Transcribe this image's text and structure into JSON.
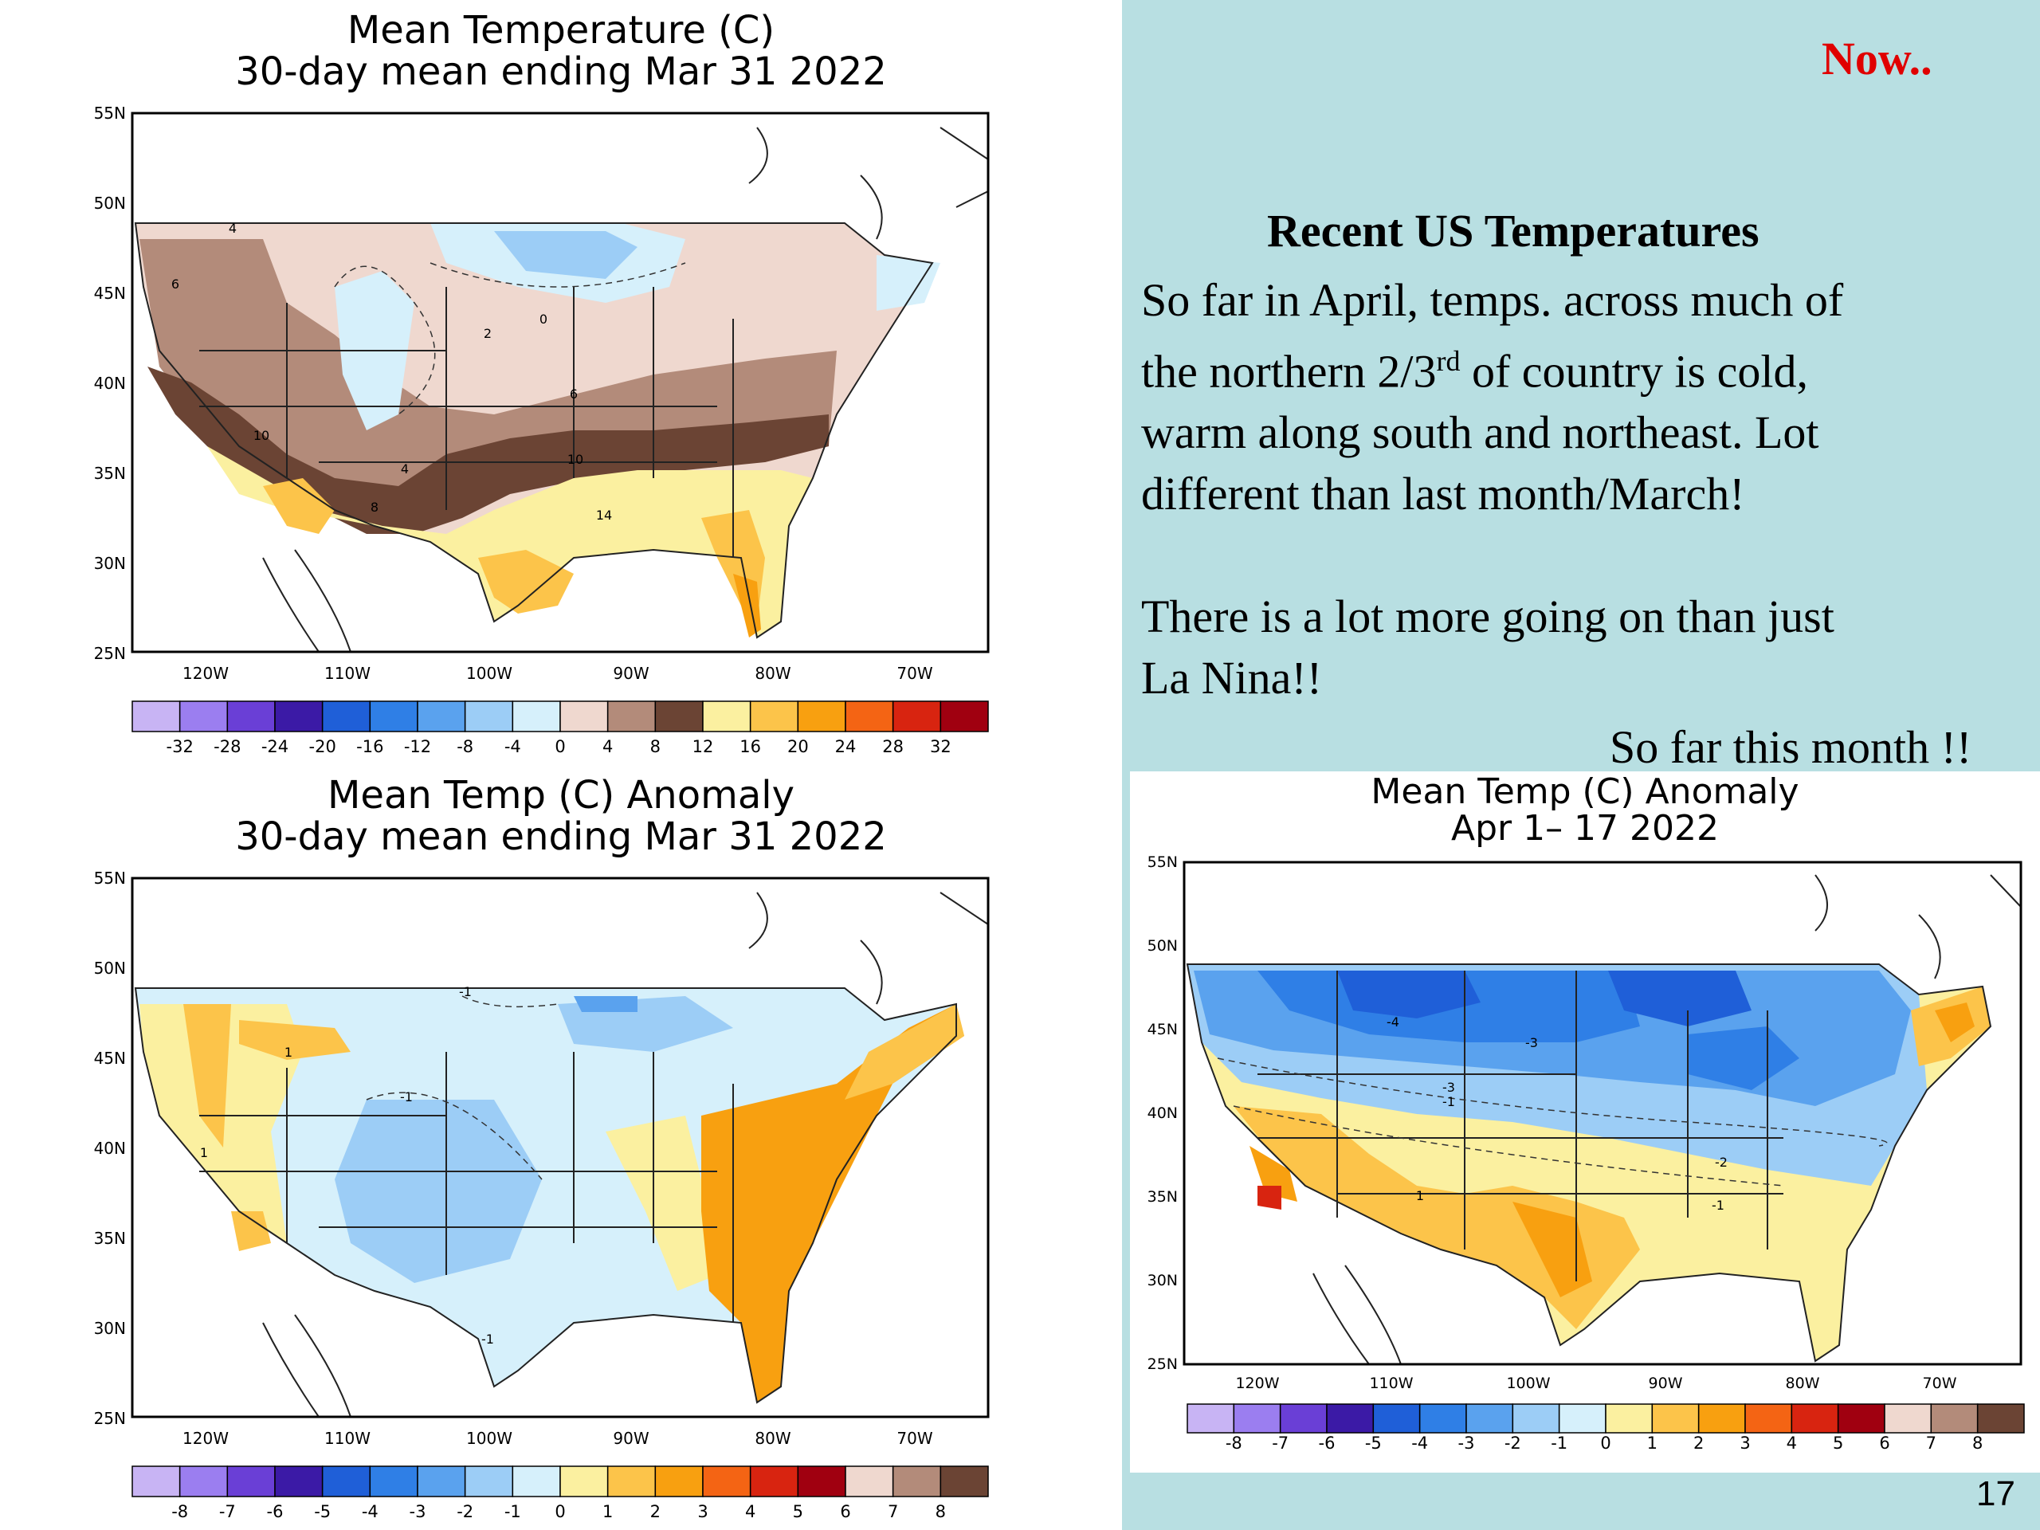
{
  "header": {
    "now_label": "Now..",
    "now_color": "#e00000"
  },
  "text_block": {
    "heading": "Recent US Temperatures",
    "paragraph1_a": "So far in April, temps. across much of",
    "paragraph1_b_pre": "the northern 2/3",
    "paragraph1_b_sup": "rd",
    "paragraph1_b_post": " of country is cold,",
    "paragraph1_c": "warm along south and northeast. Lot",
    "paragraph1_d": "different than last month/March!",
    "paragraph2_a": "There is a lot more going on than just",
    "paragraph2_b": "La Nina!!",
    "caption_right": "So far this month !!"
  },
  "page_number": "17",
  "maps": [
    {
      "id": "mean-temp",
      "title_line1": "Mean Temperature (C)",
      "title_line2": "30-day mean ending Mar 31 2022",
      "lat_labels": [
        "55N",
        "50N",
        "45N",
        "40N",
        "35N",
        "30N",
        "25N"
      ],
      "lon_labels": [
        "120W",
        "110W",
        "100W",
        "90W",
        "80W",
        "70W"
      ],
      "contour_labels": [
        "4",
        "6",
        "0",
        "2",
        "6",
        "10",
        "10",
        "4",
        "8",
        "14"
      ],
      "legend": {
        "colors": [
          "#c8b4f4",
          "#9b7ef0",
          "#6a3fd6",
          "#3b1aa6",
          "#1f5fd8",
          "#2f7fe6",
          "#5aa2ee",
          "#9ccdf6",
          "#d6f0fb",
          "#efd8cf",
          "#b38b7a",
          "#6b4434",
          "#fbf0a0",
          "#fcc44a",
          "#f8a010",
          "#f46414",
          "#d82410",
          "#a00010"
        ],
        "ticks": [
          "-32",
          "-28",
          "-24",
          "-20",
          "-16",
          "-12",
          "-8",
          "-4",
          "0",
          "4",
          "8",
          "12",
          "16",
          "20",
          "24",
          "28",
          "32"
        ]
      }
    },
    {
      "id": "march-anomaly",
      "title_line1": "Mean Temp (C) Anomaly",
      "title_line2": "30-day mean ending Mar 31 2022",
      "lat_labels": [
        "55N",
        "50N",
        "45N",
        "40N",
        "35N",
        "30N",
        "25N"
      ],
      "lon_labels": [
        "120W",
        "110W",
        "100W",
        "90W",
        "80W",
        "70W"
      ],
      "contour_labels": [
        "-1",
        "1",
        "-1",
        "1",
        "-1"
      ],
      "legend": {
        "colors": [
          "#c8b4f4",
          "#9b7ef0",
          "#6a3fd6",
          "#3b1aa6",
          "#1f5fd8",
          "#2f7fe6",
          "#5aa2ee",
          "#9ccdf6",
          "#d6f0fb",
          "#fbf0a0",
          "#fcc44a",
          "#f8a010",
          "#f46414",
          "#d82410",
          "#a00010",
          "#efd8cf",
          "#b38b7a",
          "#6b4434"
        ],
        "ticks": [
          "-8",
          "-7",
          "-6",
          "-5",
          "-4",
          "-3",
          "-2",
          "-1",
          "0",
          "1",
          "2",
          "3",
          "4",
          "5",
          "6",
          "7",
          "8"
        ]
      }
    },
    {
      "id": "april-anomaly",
      "title_line1": "Mean Temp (C) Anomaly",
      "title_line2": "Apr 1– 17 2022",
      "lat_labels": [
        "55N",
        "50N",
        "45N",
        "40N",
        "35N",
        "30N",
        "25N"
      ],
      "lon_labels": [
        "120W",
        "110W",
        "100W",
        "90W",
        "80W",
        "70W"
      ],
      "contour_labels": [
        "-4",
        "-3",
        "-3",
        "-1",
        "1",
        "-2",
        "-1"
      ],
      "legend": {
        "colors": [
          "#c8b4f4",
          "#9b7ef0",
          "#6a3fd6",
          "#3b1aa6",
          "#1f5fd8",
          "#2f7fe6",
          "#5aa2ee",
          "#9ccdf6",
          "#d6f0fb",
          "#fbf0a0",
          "#fcc44a",
          "#f8a010",
          "#f46414",
          "#d82410",
          "#a00010",
          "#efd8cf",
          "#b38b7a",
          "#6b4434"
        ],
        "ticks": [
          "-8",
          "-7",
          "-6",
          "-5",
          "-4",
          "-3",
          "-2",
          "-1",
          "0",
          "1",
          "2",
          "3",
          "4",
          "5",
          "6",
          "7",
          "8"
        ]
      }
    }
  ]
}
